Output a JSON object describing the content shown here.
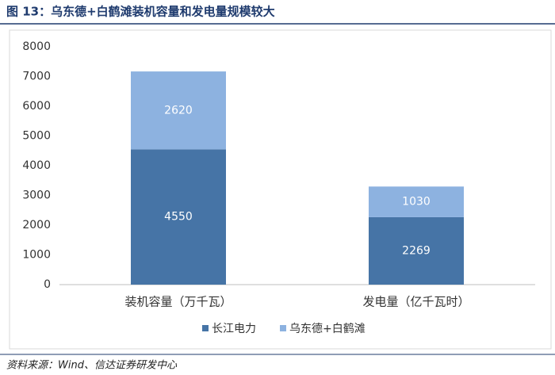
{
  "chart_data": {
    "type": "stacked-bar",
    "title": "图 13：乌东德+白鹤滩装机容量和发电量规模较大",
    "source": "资料来源：Wind、信达证券研发中心",
    "categories": [
      "装机容量（万千瓦）",
      "发电量（亿千瓦时）"
    ],
    "series": [
      {
        "name": "长江电力",
        "color": "#4674a6",
        "values": [
          4550,
          2269
        ]
      },
      {
        "name": "乌东德+白鹤滩",
        "color": "#8db2e0",
        "values": [
          2620,
          1030
        ]
      }
    ],
    "ylim": [
      0,
      8000
    ],
    "yticks": [
      0,
      1000,
      2000,
      3000,
      4000,
      5000,
      6000,
      7000,
      8000
    ],
    "legend": "bottom"
  }
}
